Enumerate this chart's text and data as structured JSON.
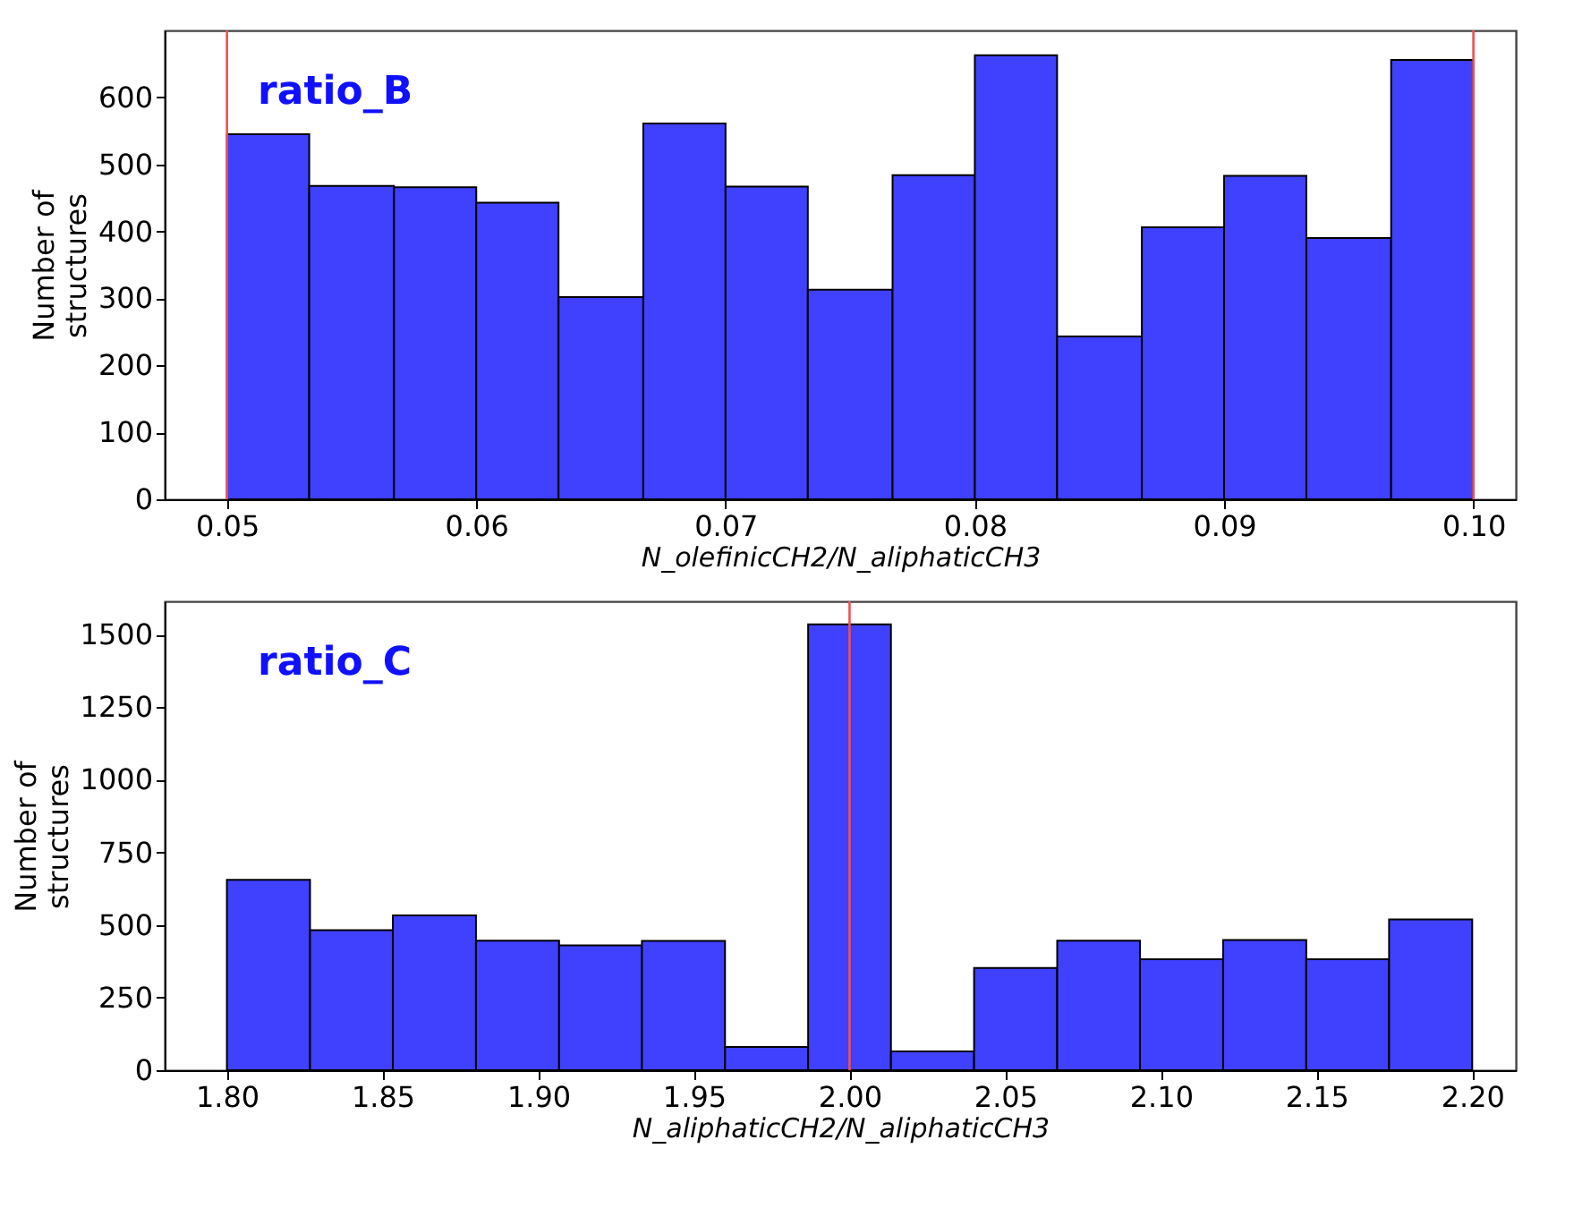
{
  "chart_data": [
    {
      "type": "histogram",
      "bins": [
        0.05,
        0.0533,
        0.0567,
        0.06,
        0.0633,
        0.0667,
        0.07,
        0.0733,
        0.0767,
        0.08,
        0.0833,
        0.0867,
        0.09,
        0.0933,
        0.0967,
        0.1
      ],
      "values": [
        545,
        468,
        466,
        443,
        302,
        561,
        467,
        313,
        484,
        663,
        243,
        406,
        483,
        390,
        656
      ],
      "color": "#4040ff",
      "xlabel": "N_olefinicCH2/N_aliphaticCH3",
      "ylabel": "Number of structures",
      "xlim": [
        0.0475,
        0.1017
      ],
      "xticks": [
        {
          "value": 0.05,
          "label": "0.05"
        },
        {
          "value": 0.06,
          "label": "0.06"
        },
        {
          "value": 0.07,
          "label": "0.07"
        },
        {
          "value": 0.08,
          "label": "0.08"
        },
        {
          "value": 0.09,
          "label": "0.09"
        },
        {
          "value": 0.1,
          "label": "0.10"
        }
      ],
      "ylim": [
        0,
        700
      ],
      "yticks": [
        0,
        100,
        200,
        300,
        400,
        500,
        600
      ],
      "ref_lines": [
        {
          "axis": "x",
          "value": 0.05,
          "color": "#f05050"
        },
        {
          "axis": "x",
          "value": 0.1,
          "color": "#f05050"
        }
      ],
      "annotations": [
        "ratio_B"
      ],
      "grid": false
    },
    {
      "type": "histogram",
      "bins": [
        1.8,
        1.8267,
        1.8533,
        1.88,
        1.9067,
        1.9333,
        1.96,
        1.9867,
        2.0133,
        2.04,
        2.0667,
        2.0933,
        2.12,
        2.1467,
        2.1733,
        2.2
      ],
      "values": [
        655,
        482,
        533,
        446,
        430,
        445,
        80,
        1535,
        65,
        352,
        446,
        382,
        448,
        382,
        519
      ],
      "color": "#4040ff",
      "xlabel": "N_aliphaticCH2/N_aliphaticCH3",
      "ylabel": "Number of structures",
      "xlim": [
        1.78,
        2.214
      ],
      "xticks": [
        {
          "value": 1.8,
          "label": "1.80"
        },
        {
          "value": 1.85,
          "label": "1.85"
        },
        {
          "value": 1.9,
          "label": "1.90"
        },
        {
          "value": 1.95,
          "label": "1.95"
        },
        {
          "value": 2.0,
          "label": "2.00"
        },
        {
          "value": 2.05,
          "label": "2.05"
        },
        {
          "value": 2.1,
          "label": "2.10"
        },
        {
          "value": 2.15,
          "label": "2.15"
        },
        {
          "value": 2.2,
          "label": "2.20"
        }
      ],
      "ylim": [
        0,
        1614
      ],
      "yticks": [
        0,
        250,
        500,
        750,
        1000,
        1250,
        1500
      ],
      "ref_lines": [
        {
          "axis": "x",
          "value": 2.0,
          "color": "#f05050"
        }
      ],
      "annotations": [
        "ratio_C"
      ],
      "grid": false
    }
  ]
}
